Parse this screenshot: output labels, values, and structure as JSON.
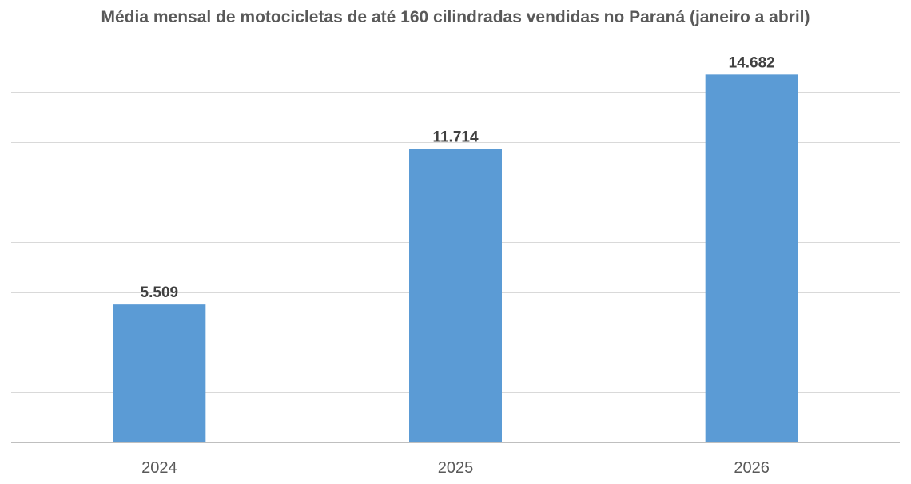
{
  "chart_data": {
    "type": "bar",
    "title": "Média mensal de motocicletas de até 160 cilindradas vendidas no Paraná (janeiro a abril)",
    "categories": [
      "2024",
      "2025",
      "2026"
    ],
    "values": [
      5509,
      11714,
      14682
    ],
    "value_labels": [
      "5.509",
      "11.714",
      "14.682"
    ],
    "xlabel": "",
    "ylabel": "",
    "ylim": [
      0,
      16000
    ],
    "grid": true,
    "y_axis_labels_shown": false,
    "legend": "none",
    "bar_color": "#5b9bd5"
  }
}
